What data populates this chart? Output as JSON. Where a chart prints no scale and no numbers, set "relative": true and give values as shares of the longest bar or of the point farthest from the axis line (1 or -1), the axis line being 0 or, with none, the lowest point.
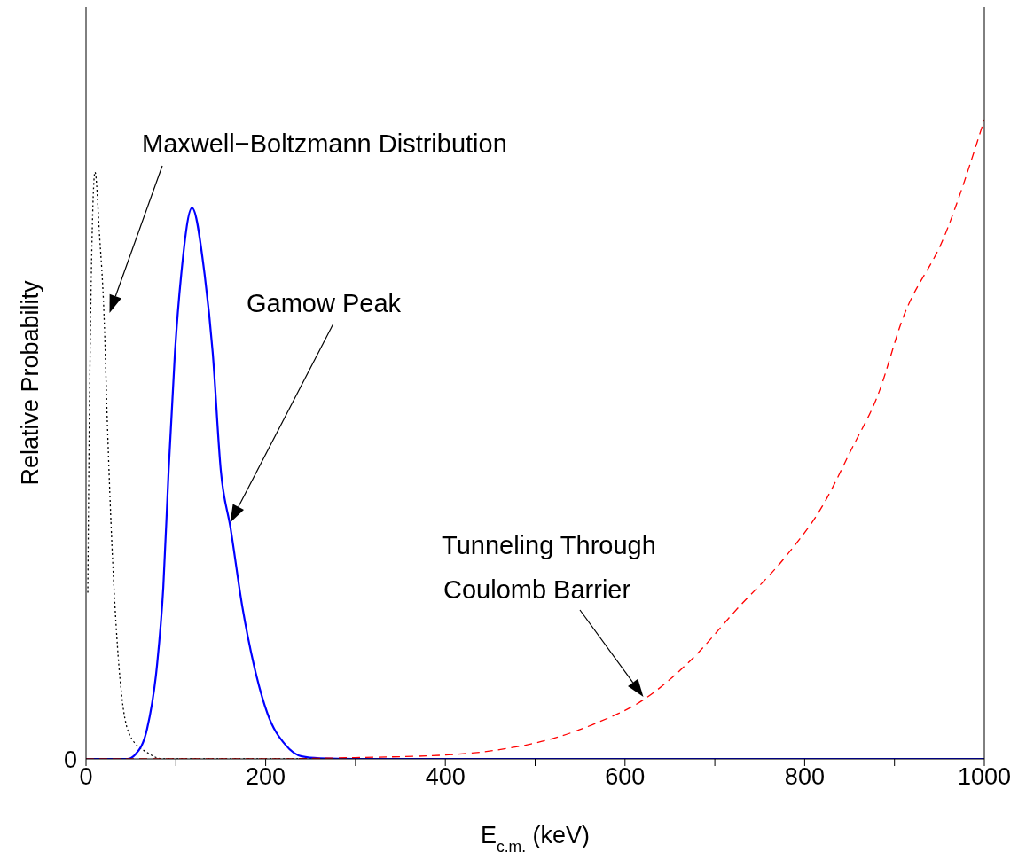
{
  "chart_data": {
    "type": "line",
    "relative": true,
    "xlabel": "E$_{c.m.}$ (keV)",
    "ylabel": "Relative Probability",
    "xlim": [
      0,
      1000
    ],
    "xticks": [
      0,
      {
        "value": 100,
        "label": null
      },
      200,
      {
        "value": 300,
        "label": null
      },
      400,
      {
        "value": 500,
        "label": null
      },
      600,
      {
        "value": 700,
        "label": null
      },
      800,
      {
        "value": 900,
        "label": null
      },
      1000
    ],
    "marker": "none",
    "series": [
      {
        "color": "#000000",
        "line_style": "dotted",
        "x": [
          2,
          4,
          10,
          15,
          20,
          24,
          29,
          35,
          41,
          50,
          68,
          86,
          150,
          1000
        ],
        "values": [
          0.26,
          0.57,
          0.918,
          0.82,
          0.696,
          0.514,
          0.33,
          0.176,
          0.084,
          0.034,
          0.01,
          0,
          0,
          0
        ]
      },
      {
        "color": "#0000ff",
        "line_style": "solid",
        "x": [
          0,
          46,
          55,
          68,
          79,
          86,
          92,
          99,
          106,
          118,
          132,
          141,
          150,
          161,
          174,
          187,
          202,
          222,
          240,
          260,
          300,
          1000
        ],
        "values": [
          0,
          0,
          0.007,
          0.047,
          0.146,
          0.268,
          0.452,
          0.636,
          0.758,
          0.862,
          0.758,
          0.636,
          0.452,
          0.36,
          0.238,
          0.146,
          0.071,
          0.022,
          0.004,
          0.001,
          0,
          0
        ]
      },
      {
        "color": "#ff0000",
        "line_style": "dashed",
        "x": [
          0,
          200,
          300,
          400,
          463,
          515,
          568,
          620,
          673,
          725,
          778,
          820,
          852,
          882,
          909,
          956,
          1000
        ],
        "values": [
          0,
          0,
          0.002,
          0.006,
          0.015,
          0.03,
          0.056,
          0.092,
          0.154,
          0.235,
          0.315,
          0.396,
          0.484,
          0.571,
          0.688,
          0.819,
          1
        ]
      }
    ],
    "annotations": [
      "0",
      "Maxwell−Boltzmann Distribution",
      "Gamow Peak",
      "Tunneling Through\nCoulomb Barrier"
    ]
  }
}
